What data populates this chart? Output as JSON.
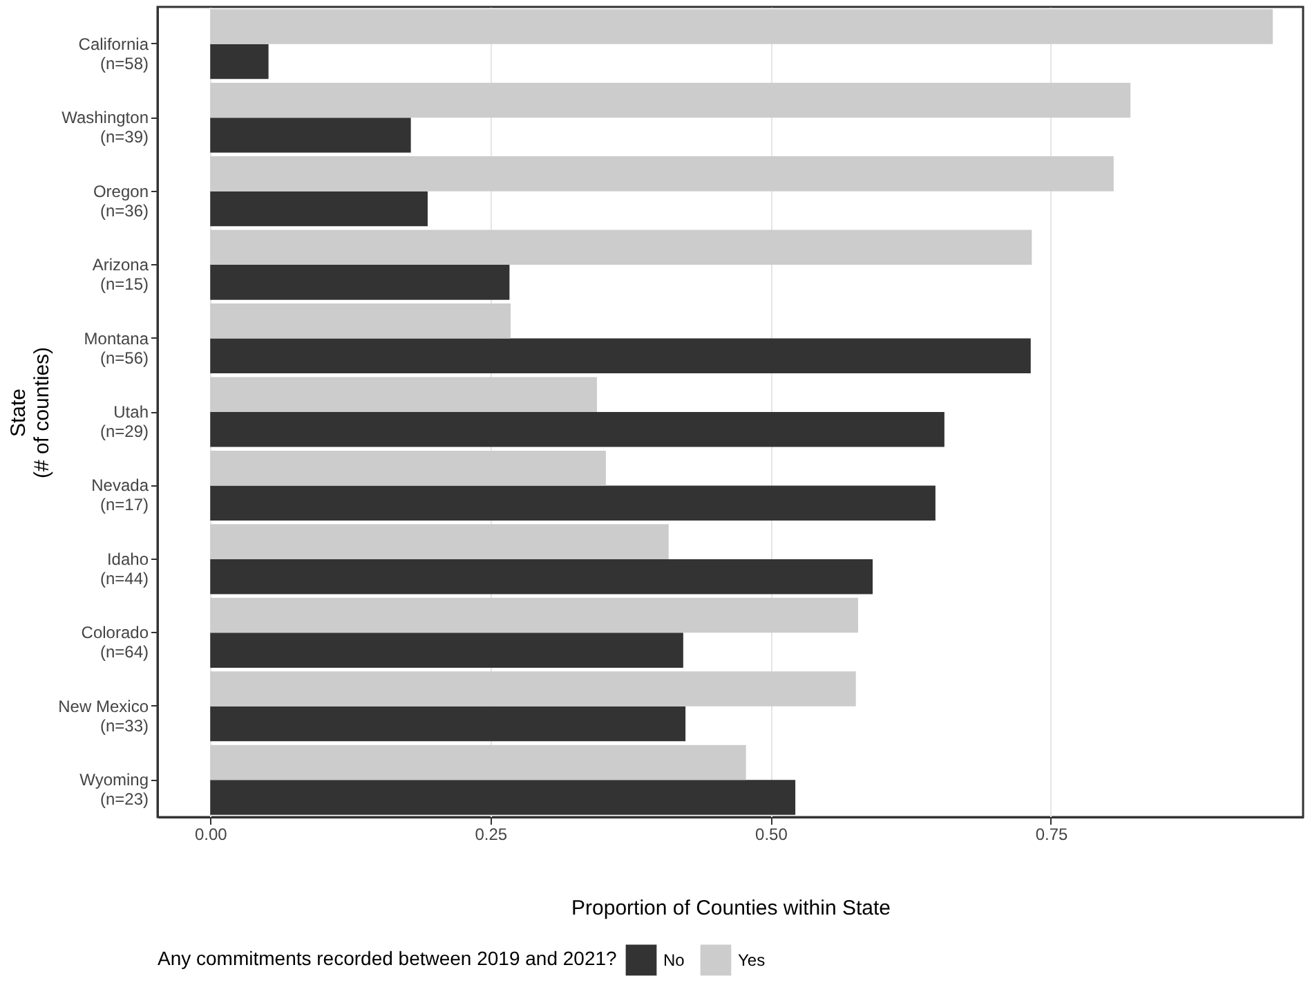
{
  "chart_data": {
    "type": "bar",
    "orientation": "horizontal",
    "categories": [
      "California\n(n=58)",
      "Washington\n(n=39)",
      "Oregon\n(n=36)",
      "Arizona\n(n=15)",
      "Montana\n(n=56)",
      "Utah\n(n=29)",
      "Nevada\n(n=17)",
      "Idaho\n(n=44)",
      "Colorado\n(n=64)",
      "New Mexico\n(n=33)",
      "Wyoming\n(n=23)"
    ],
    "series": [
      {
        "name": "No",
        "color": "#333333",
        "values": [
          0.052,
          0.179,
          0.194,
          0.267,
          0.732,
          0.655,
          0.647,
          0.591,
          0.422,
          0.424,
          0.522
        ]
      },
      {
        "name": "Yes",
        "color": "#cccccc",
        "values": [
          0.948,
          0.821,
          0.806,
          0.733,
          0.268,
          0.345,
          0.353,
          0.409,
          0.578,
          0.576,
          0.478
        ]
      }
    ],
    "xlim": [
      -0.047,
      0.975
    ],
    "xticks": [
      {
        "value": 0,
        "label": "0.00"
      },
      {
        "value": 0.25,
        "label": "0.25"
      },
      {
        "value": 0.5,
        "label": "0.50"
      },
      {
        "value": 0.75,
        "label": "0.75"
      }
    ],
    "xlabel": "Proportion of Counties within State",
    "ylabel": "State\n(# of counties)",
    "legend_title": "Any commitments recorded between 2019 and 2021?",
    "legend": "bottom",
    "grid": "x"
  }
}
